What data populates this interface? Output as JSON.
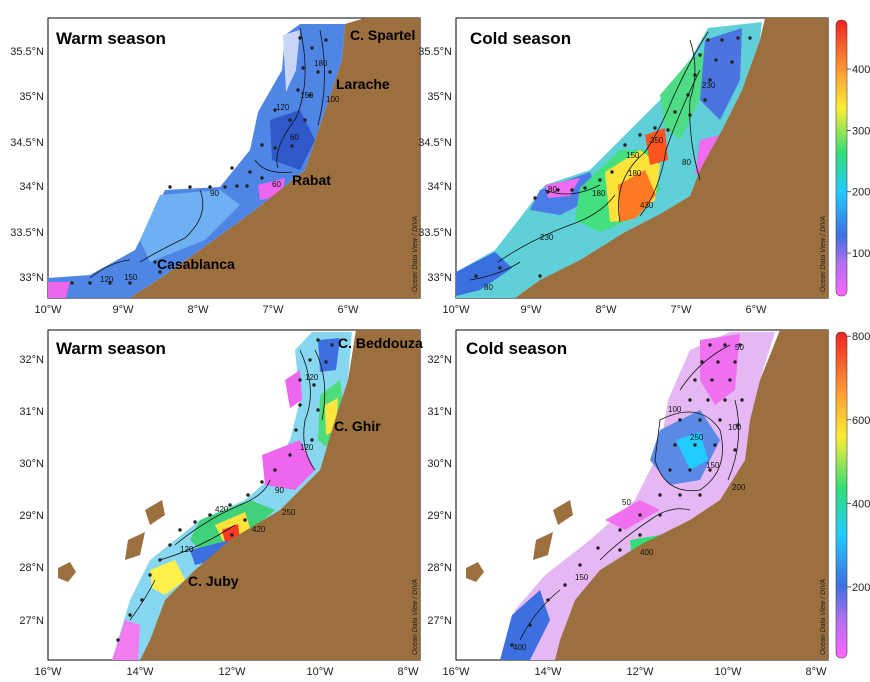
{
  "colors": {
    "land": "#9c6f3f",
    "station": "#222222",
    "contour": "#111111",
    "colorscale": [
      "#ff66ff",
      "#3d6fe0",
      "#22ccff",
      "#33dd77",
      "#ffee33",
      "#ff9933",
      "#ee2222"
    ]
  },
  "credit": "Ocean Data View / DIVA",
  "panels": [
    {
      "id": "north-warm",
      "title": "Warm season",
      "xticks": [
        "10°W",
        "9°W",
        "8°W",
        "7°W",
        "6°W"
      ],
      "yticks": [
        "33°N",
        "33.5°N",
        "34°N",
        "34.5°N",
        "35°N",
        "35.5°N"
      ],
      "places": [
        "C. Spartel",
        "Larache",
        "Rabat",
        "Casablanca"
      ],
      "contour_labels": [
        "150",
        "180",
        "100",
        "90",
        "60",
        "120",
        "150",
        "120",
        "60"
      ],
      "colorbar": null
    },
    {
      "id": "north-cold",
      "title": "Cold season",
      "xticks": [
        "10°W",
        "9°W",
        "8°W",
        "7°W",
        "6°W"
      ],
      "yticks": [
        "33°N",
        "33.5°N",
        "34°N",
        "34.5°N",
        "35°N",
        "35.5°N"
      ],
      "places": [],
      "contour_labels": [
        "230",
        "180",
        "80",
        "350",
        "430",
        "80",
        "230",
        "80",
        "180",
        "150"
      ],
      "colorbar": {
        "ticks": [
          "100",
          "200",
          "300",
          "400"
        ],
        "range": [
          30,
          480
        ]
      }
    },
    {
      "id": "south-warm",
      "title": "Warm season",
      "xticks": [
        "16°W",
        "14°W",
        "12°W",
        "10°W",
        "8°W"
      ],
      "yticks": [
        "27°N",
        "28°N",
        "29°N",
        "30°N",
        "31°N",
        "32°N"
      ],
      "places": [
        "C. Beddouza",
        "C. Ghir",
        "C. Juby"
      ],
      "contour_labels": [
        "420",
        "120",
        "90",
        "420",
        "250",
        "120",
        "120"
      ],
      "colorbar": null
    },
    {
      "id": "south-cold",
      "title": "Cold season",
      "xticks": [
        "16°W",
        "14°W",
        "12°W",
        "10°W",
        "8°W"
      ],
      "yticks": [
        "27°N",
        "28°N",
        "29°N",
        "30°N",
        "31°N",
        "32°N"
      ],
      "places": [],
      "contour_labels": [
        "400",
        "150",
        "400",
        "50",
        "100",
        "250",
        "150",
        "100",
        "50",
        "200"
      ],
      "colorbar": {
        "ticks": [
          "200",
          "400",
          "600",
          "800"
        ],
        "range": [
          30,
          810
        ]
      }
    }
  ]
}
